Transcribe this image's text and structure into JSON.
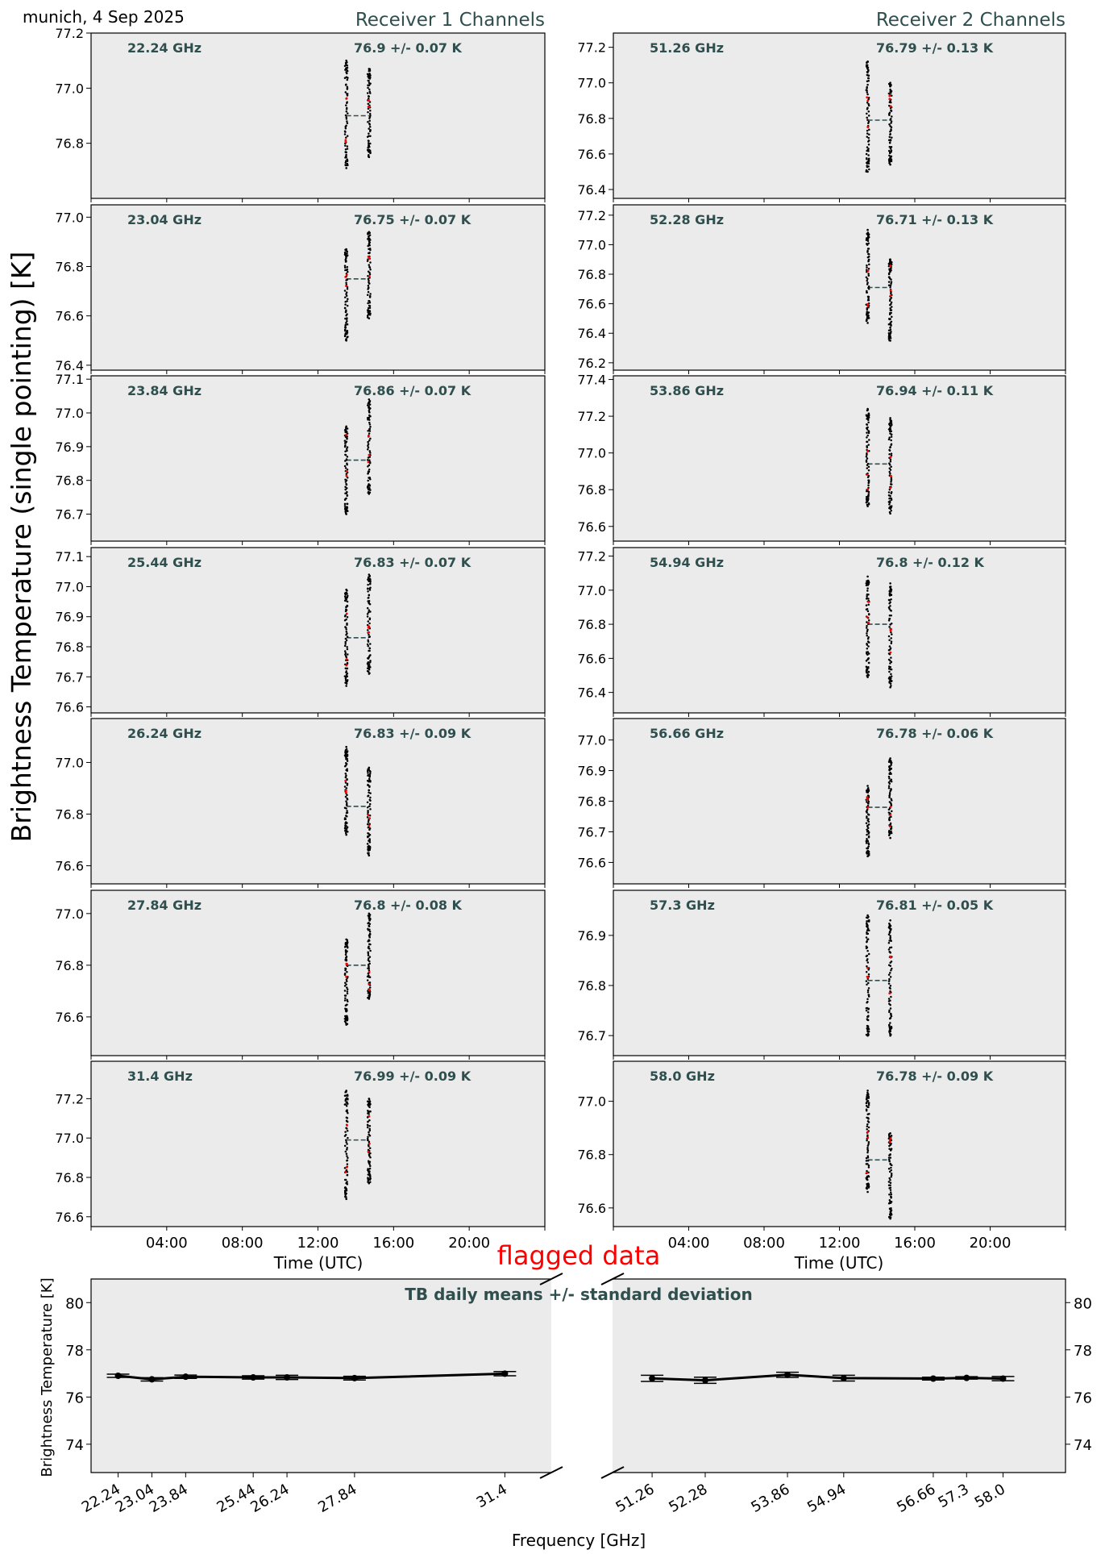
{
  "header": {
    "location_date": "munich, 4 Sep 2025",
    "receiver1_title": "Receiver 1 Channels",
    "receiver2_title": "Receiver 2 Channels",
    "ylabel_main": "Brightness Temperature (single pointing) [K]",
    "xlabel_time": "Time (UTC)",
    "flag_label": "flagged data"
  },
  "colors": {
    "panel_bg": "#ebebeb",
    "annotation": "#2f4f4f",
    "point": "#000000",
    "flag_point": "#ff0000",
    "flag_text": "#ff0000"
  },
  "chart_data": [
    {
      "type": "scatter",
      "receiver": 1,
      "xlabel": "Time (UTC)",
      "xlim": [
        0,
        24
      ],
      "xticks": [
        "04:00",
        "08:00",
        "12:00",
        "16:00",
        "20:00"
      ],
      "channels": [
        {
          "freq_label": "22.24 GHz",
          "mean_label": "76.9 +/- 0.07 K",
          "mean": 76.9,
          "ylim": [
            76.6,
            77.2
          ],
          "yticks": [
            76.8,
            77.0,
            77.2
          ],
          "bursts": [
            {
              "t": 13.5,
              "lo": 76.71,
              "hi": 77.1
            },
            {
              "t": 14.7,
              "lo": 76.75,
              "hi": 77.07
            }
          ]
        },
        {
          "freq_label": "23.04 GHz",
          "mean_label": "76.75 +/- 0.07 K",
          "mean": 76.75,
          "ylim": [
            76.38,
            77.05
          ],
          "yticks": [
            76.4,
            76.6,
            76.8,
            77.0
          ],
          "bursts": [
            {
              "t": 13.5,
              "lo": 76.5,
              "hi": 76.87
            },
            {
              "t": 14.7,
              "lo": 76.59,
              "hi": 76.94
            }
          ]
        },
        {
          "freq_label": "23.84 GHz",
          "mean_label": "76.86 +/- 0.07 K",
          "mean": 76.86,
          "ylim": [
            76.62,
            77.11
          ],
          "yticks": [
            76.7,
            76.8,
            76.9,
            77.0,
            77.1
          ],
          "bursts": [
            {
              "t": 13.5,
              "lo": 76.7,
              "hi": 76.96
            },
            {
              "t": 14.7,
              "lo": 76.76,
              "hi": 77.04
            }
          ]
        },
        {
          "freq_label": "25.44 GHz",
          "mean_label": "76.83 +/- 0.07 K",
          "mean": 76.83,
          "ylim": [
            76.58,
            77.13
          ],
          "yticks": [
            76.6,
            76.7,
            76.8,
            76.9,
            77.0,
            77.1
          ],
          "bursts": [
            {
              "t": 13.5,
              "lo": 76.67,
              "hi": 76.99
            },
            {
              "t": 14.7,
              "lo": 76.71,
              "hi": 77.04
            }
          ]
        },
        {
          "freq_label": "26.24 GHz",
          "mean_label": "76.83 +/- 0.09 K",
          "mean": 76.83,
          "ylim": [
            76.53,
            77.17
          ],
          "yticks": [
            76.6,
            76.8,
            77.0
          ],
          "bursts": [
            {
              "t": 13.5,
              "lo": 76.72,
              "hi": 77.06
            },
            {
              "t": 14.7,
              "lo": 76.64,
              "hi": 76.98
            }
          ]
        },
        {
          "freq_label": "27.84 GHz",
          "mean_label": "76.8 +/- 0.08 K",
          "mean": 76.8,
          "ylim": [
            76.45,
            77.09
          ],
          "yticks": [
            76.6,
            76.8,
            77.0
          ],
          "bursts": [
            {
              "t": 13.5,
              "lo": 76.57,
              "hi": 76.9
            },
            {
              "t": 14.7,
              "lo": 76.67,
              "hi": 77.0
            }
          ]
        },
        {
          "freq_label": "31.4 GHz",
          "mean_label": "76.99 +/- 0.09 K",
          "mean": 76.99,
          "ylim": [
            76.55,
            77.39
          ],
          "yticks": [
            76.6,
            76.8,
            77.0,
            77.2
          ],
          "bursts": [
            {
              "t": 13.5,
              "lo": 76.69,
              "hi": 77.24
            },
            {
              "t": 14.7,
              "lo": 76.77,
              "hi": 77.2
            }
          ]
        }
      ]
    },
    {
      "type": "scatter",
      "receiver": 2,
      "xlabel": "Time (UTC)",
      "xlim": [
        0,
        24
      ],
      "xticks": [
        "04:00",
        "08:00",
        "12:00",
        "16:00",
        "20:00"
      ],
      "channels": [
        {
          "freq_label": "51.26 GHz",
          "mean_label": "76.79 +/- 0.13 K",
          "mean": 76.79,
          "ylim": [
            76.35,
            77.28
          ],
          "yticks": [
            76.4,
            76.6,
            76.8,
            77.0,
            77.2
          ],
          "bursts": [
            {
              "t": 13.5,
              "lo": 76.5,
              "hi": 77.12
            },
            {
              "t": 14.7,
              "lo": 76.54,
              "hi": 77.0
            }
          ]
        },
        {
          "freq_label": "52.28 GHz",
          "mean_label": "76.71 +/- 0.13 K",
          "mean": 76.71,
          "ylim": [
            76.15,
            77.27
          ],
          "yticks": [
            76.2,
            76.4,
            76.6,
            76.8,
            77.0,
            77.2
          ],
          "bursts": [
            {
              "t": 13.5,
              "lo": 76.47,
              "hi": 77.1
            },
            {
              "t": 14.7,
              "lo": 76.35,
              "hi": 76.9
            }
          ]
        },
        {
          "freq_label": "53.86 GHz",
          "mean_label": "76.94 +/- 0.11 K",
          "mean": 76.94,
          "ylim": [
            76.52,
            77.42
          ],
          "yticks": [
            76.6,
            76.8,
            77.0,
            77.2,
            77.4
          ],
          "bursts": [
            {
              "t": 13.5,
              "lo": 76.71,
              "hi": 77.24
            },
            {
              "t": 14.7,
              "lo": 76.67,
              "hi": 77.19
            }
          ]
        },
        {
          "freq_label": "54.94 GHz",
          "mean_label": "76.8 +/- 0.12 K",
          "mean": 76.8,
          "ylim": [
            76.28,
            77.25
          ],
          "yticks": [
            76.4,
            76.6,
            76.8,
            77.0,
            77.2
          ],
          "bursts": [
            {
              "t": 13.5,
              "lo": 76.49,
              "hi": 77.08
            },
            {
              "t": 14.7,
              "lo": 76.43,
              "hi": 77.04
            }
          ]
        },
        {
          "freq_label": "56.66 GHz",
          "mean_label": "76.78 +/- 0.06 K",
          "mean": 76.78,
          "ylim": [
            76.53,
            77.07
          ],
          "yticks": [
            76.6,
            76.7,
            76.8,
            76.9,
            77.0
          ],
          "bursts": [
            {
              "t": 13.5,
              "lo": 76.62,
              "hi": 76.85
            },
            {
              "t": 14.7,
              "lo": 76.68,
              "hi": 76.94
            }
          ]
        },
        {
          "freq_label": "57.3 GHz",
          "mean_label": "76.81 +/- 0.05 K",
          "mean": 76.81,
          "ylim": [
            76.66,
            76.99
          ],
          "yticks": [
            76.7,
            76.8,
            76.9
          ],
          "bursts": [
            {
              "t": 13.5,
              "lo": 76.7,
              "hi": 76.94
            },
            {
              "t": 14.7,
              "lo": 76.7,
              "hi": 76.93
            }
          ]
        },
        {
          "freq_label": "58.0 GHz",
          "mean_label": "76.78 +/- 0.09 K",
          "mean": 76.78,
          "ylim": [
            76.53,
            77.15
          ],
          "yticks": [
            76.6,
            76.8,
            77.0
          ],
          "bursts": [
            {
              "t": 13.5,
              "lo": 76.66,
              "hi": 77.04
            },
            {
              "t": 14.7,
              "lo": 76.56,
              "hi": 76.88
            }
          ]
        }
      ]
    },
    {
      "type": "line",
      "title": "TB daily means +/- standard deviation",
      "xlabel": "Frequency [GHz]",
      "ylabel": "Brightness Temperature [K]",
      "ylim": [
        72.8,
        81
      ],
      "yticks": [
        74,
        76,
        78,
        80
      ],
      "left": {
        "xlim": [
          21.6,
          32.5
        ],
        "x": [
          22.24,
          23.04,
          23.84,
          25.44,
          26.24,
          27.84,
          31.4
        ],
        "tick_labels": [
          "22.24",
          "23.04",
          "23.84",
          "25.44",
          "26.24",
          "27.84",
          "31.4"
        ],
        "mean": [
          76.9,
          76.75,
          76.86,
          76.83,
          76.83,
          76.8,
          76.99
        ],
        "std": [
          0.07,
          0.07,
          0.07,
          0.07,
          0.09,
          0.08,
          0.09
        ]
      },
      "right": {
        "xlim": [
          50.5,
          59.2
        ],
        "x": [
          51.26,
          52.28,
          53.86,
          54.94,
          56.66,
          57.3,
          58.0
        ],
        "tick_labels": [
          "51.26",
          "52.28",
          "53.86",
          "54.94",
          "56.66",
          "57.3",
          "58.0"
        ],
        "mean": [
          76.79,
          76.71,
          76.94,
          76.8,
          76.78,
          76.81,
          76.78
        ],
        "std": [
          0.13,
          0.13,
          0.11,
          0.12,
          0.06,
          0.05,
          0.09
        ]
      }
    }
  ]
}
